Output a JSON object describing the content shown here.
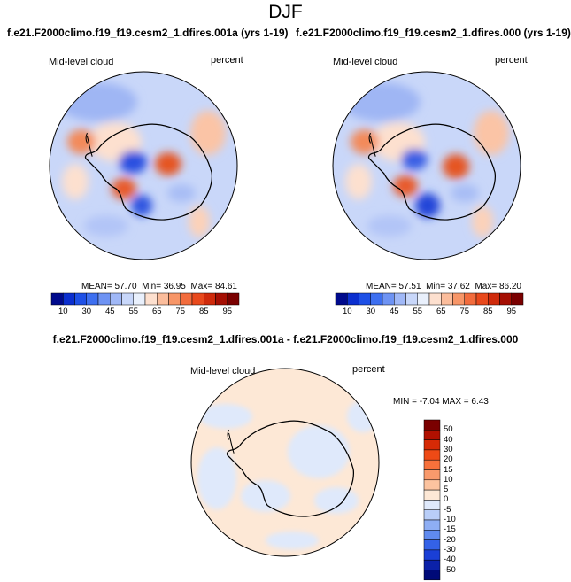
{
  "season": "DJF",
  "panels": [
    {
      "title": "f.e21.F2000climo.f19_f19.cesm2_1.dfires.001a (yrs 1-19)",
      "variable": "Mid-level cloud",
      "units": "percent",
      "stats": {
        "mean": "57.70",
        "min": "36.95",
        "max": "84.61"
      }
    },
    {
      "title": "f.e21.F2000climo.f19_f19.cesm2_1.dfires.000 (yrs 1-19)",
      "variable": "Mid-level cloud",
      "units": "percent",
      "stats": {
        "mean": "57.51",
        "min": "37.62",
        "max": "86.20"
      }
    }
  ],
  "labels": {
    "mean": "MEAN=",
    "min": "Min=",
    "max": "Max="
  },
  "abs_colorbar": {
    "ticks": [
      "10",
      "30",
      "45",
      "55",
      "65",
      "75",
      "85",
      "95"
    ],
    "colors": [
      "#000a8c",
      "#0b2fcf",
      "#1e50e6",
      "#3d6ff0",
      "#6e93f3",
      "#a0b8f7",
      "#c8d7fa",
      "#e9f0fc",
      "#fde0cf",
      "#fbbd9c",
      "#f79668",
      "#f26c3d",
      "#e8491c",
      "#cf2a0b",
      "#a50f03",
      "#7a0000"
    ]
  },
  "diff": {
    "title": "f.e21.F2000climo.f19_f19.cesm2_1.dfires.001a - f.e21.F2000climo.f19_f19.cesm2_1.dfires.000",
    "variable": "Mid-level cloud",
    "units": "percent",
    "min_label": "MIN =",
    "min": "-7.04",
    "max_label": "MAX =",
    "max": "6.43"
  },
  "diff_colorbar": {
    "ticks": [
      "50",
      "40",
      "30",
      "20",
      "15",
      "10",
      "5",
      "0",
      "-5",
      "-10",
      "-15",
      "-20",
      "-30",
      "-40",
      "-50"
    ],
    "colors": [
      "#7a0000",
      "#b11000",
      "#d62a06",
      "#ee4a16",
      "#f7713b",
      "#f99a6c",
      "#fcc39f",
      "#fde8d6",
      "#dfe9fb",
      "#b9cef8",
      "#8eaef4",
      "#5f8aef",
      "#3462e7",
      "#1a3fd6",
      "#0b21a8",
      "#000a78"
    ]
  }
}
